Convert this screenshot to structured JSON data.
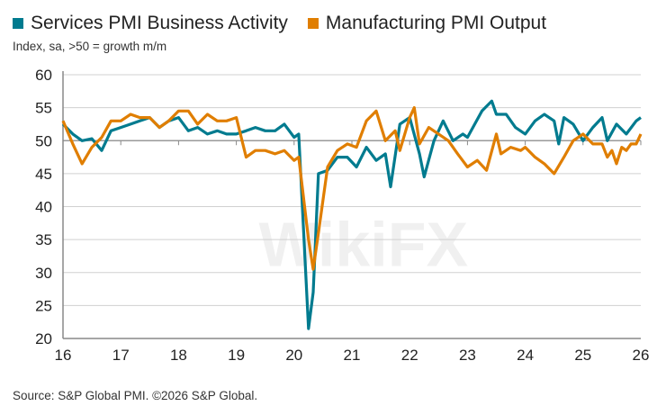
{
  "subtitle": "Index, sa, >50 = growth m/m",
  "source": "Source: S&P Global PMI. ©2026 S&P Global.",
  "watermark": "WikiFX",
  "chart_data": {
    "type": "line",
    "title": "",
    "xlabel": "",
    "ylabel": "Index, sa, >50 = growth m/m",
    "xlim": [
      16,
      26
    ],
    "ylim": [
      20,
      60
    ],
    "x_ticks": [
      "16",
      "17",
      "18",
      "19",
      "20",
      "21",
      "22",
      "23",
      "24",
      "25",
      "26"
    ],
    "y_ticks": [
      "20",
      "25",
      "30",
      "35",
      "40",
      "45",
      "50",
      "55",
      "60"
    ],
    "grid": "horizontal",
    "legend": "top",
    "series": [
      {
        "name": "Services PMI Business Activity",
        "color": "#007b8f",
        "x": [
          16.0,
          16.17,
          16.33,
          16.5,
          16.67,
          16.83,
          17.0,
          17.17,
          17.33,
          17.5,
          17.67,
          17.83,
          18.0,
          18.17,
          18.33,
          18.5,
          18.67,
          18.83,
          19.0,
          19.17,
          19.33,
          19.5,
          19.67,
          19.83,
          20.0,
          20.08,
          20.25,
          20.33,
          20.42,
          20.58,
          20.75,
          20.92,
          21.08,
          21.25,
          21.42,
          21.58,
          21.67,
          21.83,
          22.0,
          22.17,
          22.25,
          22.42,
          22.58,
          22.75,
          22.92,
          23.0,
          23.25,
          23.42,
          23.5,
          23.67,
          23.83,
          24.0,
          24.17,
          24.33,
          24.5,
          24.58,
          24.67,
          24.83,
          25.0,
          25.17,
          25.33,
          25.42,
          25.58,
          25.75,
          25.92,
          26.0
        ],
        "y": [
          52.5,
          51,
          50,
          50.3,
          48.5,
          51.5,
          52,
          52.5,
          53,
          53.5,
          52,
          53,
          53.5,
          51.5,
          52,
          51,
          51.5,
          51,
          51,
          51.5,
          52,
          51.5,
          51.5,
          52.5,
          50.5,
          51,
          21.5,
          27,
          45,
          45.5,
          47.5,
          47.5,
          46,
          49,
          47,
          48,
          43,
          52.5,
          53.5,
          48,
          44.5,
          50,
          53,
          50,
          51,
          50.5,
          54.5,
          56,
          54,
          54,
          52,
          51,
          53,
          54,
          53,
          49.5,
          53.5,
          52.5,
          50,
          52,
          53.5,
          50,
          52.5,
          51,
          53,
          53.5
        ]
      },
      {
        "name": "Manufacturing PMI Output",
        "color": "#e07e00",
        "x": [
          16.0,
          16.17,
          16.33,
          16.5,
          16.67,
          16.83,
          17.0,
          17.17,
          17.33,
          17.5,
          17.67,
          17.83,
          18.0,
          18.17,
          18.33,
          18.5,
          18.67,
          18.83,
          19.0,
          19.17,
          19.33,
          19.5,
          19.67,
          19.83,
          20.0,
          20.08,
          20.25,
          20.33,
          20.42,
          20.58,
          20.75,
          20.92,
          21.08,
          21.25,
          21.42,
          21.58,
          21.75,
          21.83,
          22.0,
          22.08,
          22.17,
          22.33,
          22.5,
          22.67,
          22.83,
          23.0,
          23.17,
          23.33,
          23.5,
          23.58,
          23.75,
          23.92,
          24.0,
          24.17,
          24.33,
          24.5,
          24.67,
          24.83,
          25.0,
          25.17,
          25.33,
          25.42,
          25.5,
          25.58,
          25.67,
          25.75,
          25.83,
          25.92,
          26.0
        ],
        "y": [
          53,
          49.5,
          46.5,
          49,
          50.5,
          53,
          53,
          54,
          53.5,
          53.5,
          52,
          53,
          54.5,
          54.5,
          52.5,
          54,
          53,
          53,
          53.5,
          47.5,
          48.5,
          48.5,
          48,
          48.5,
          47,
          47.5,
          35,
          30.5,
          36,
          46,
          48.5,
          49.5,
          49,
          53,
          54.5,
          50,
          51.5,
          48.5,
          53.5,
          55,
          49.5,
          52,
          51,
          50,
          48,
          46,
          47,
          45.5,
          51,
          48,
          49,
          48.5,
          49,
          47.5,
          46.5,
          45,
          47.5,
          50,
          51,
          49.5,
          49.5,
          47.5,
          48.5,
          46.5,
          49,
          48.5,
          49.5,
          49.5,
          51
        ]
      }
    ]
  }
}
